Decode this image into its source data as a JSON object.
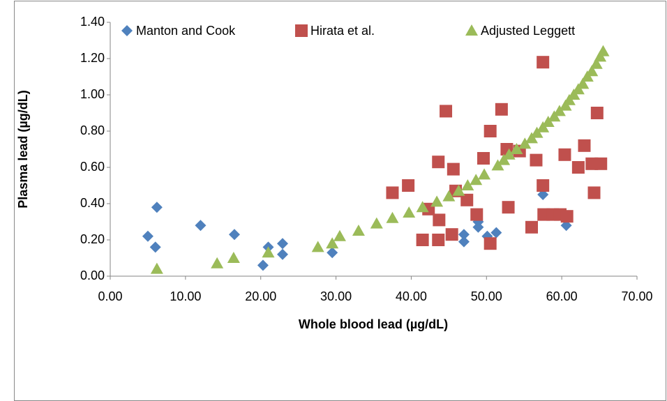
{
  "chart_data": {
    "type": "scatter",
    "xlabel": "Whole blood lead (µg/dL)",
    "ylabel": "Plasma lead (µg/dL)",
    "xlim": [
      0,
      70
    ],
    "ylim": [
      0,
      1.4
    ],
    "xticks": [
      {
        "value": 0,
        "label": "0.00"
      },
      {
        "value": 10,
        "label": "10.00"
      },
      {
        "value": 20,
        "label": "20.00"
      },
      {
        "value": 30,
        "label": "30.00"
      },
      {
        "value": 40,
        "label": "40.00"
      },
      {
        "value": 50,
        "label": "50.00"
      },
      {
        "value": 60,
        "label": "60.00"
      },
      {
        "value": 70,
        "label": "70.00"
      }
    ],
    "yticks": [
      {
        "value": 0,
        "label": "0.00"
      },
      {
        "value": 0.2,
        "label": "0.20"
      },
      {
        "value": 0.4,
        "label": "0.40"
      },
      {
        "value": 0.6,
        "label": "0.60"
      },
      {
        "value": 0.8,
        "label": "0.80"
      },
      {
        "value": 1.0,
        "label": "1.00"
      },
      {
        "value": 1.2,
        "label": "1.20"
      },
      {
        "value": 1.4,
        "label": "1.40"
      }
    ],
    "grid": false,
    "series": [
      {
        "name": "Manton and Cook",
        "color": "#4f81bd",
        "marker": "diamond",
        "x": [
          5.0,
          6.2,
          6.0,
          12.0,
          16.5,
          20.3,
          21.0,
          22.9,
          22.9,
          29.5,
          47.0,
          47.0,
          48.9,
          48.9,
          50.1,
          51.3,
          57.5,
          60.6
        ],
        "values": [
          0.22,
          0.38,
          0.16,
          0.28,
          0.23,
          0.06,
          0.16,
          0.18,
          0.12,
          0.13,
          0.23,
          0.19,
          0.3,
          0.27,
          0.22,
          0.24,
          0.45,
          0.28
        ]
      },
      {
        "name": "Hirata et al.",
        "color": "#c0504d",
        "marker": "square",
        "x": [
          41.5,
          37.5,
          39.6,
          42.3,
          43.6,
          43.6,
          43.7,
          44.6,
          45.4,
          45.6,
          45.9,
          47.4,
          48.7,
          49.6,
          50.5,
          50.5,
          52.0,
          52.7,
          52.9,
          54.4,
          56.0,
          56.6,
          57.5,
          57.5,
          57.6,
          58.8,
          59.8,
          60.7,
          60.4,
          62.2,
          63.0,
          64.0,
          64.3,
          64.7,
          65.2
        ],
        "values": [
          0.2,
          0.46,
          0.5,
          0.37,
          0.63,
          0.2,
          0.31,
          0.91,
          0.23,
          0.59,
          0.47,
          0.42,
          0.34,
          0.65,
          0.8,
          0.18,
          0.92,
          0.7,
          0.38,
          0.69,
          0.27,
          0.64,
          1.18,
          0.5,
          0.34,
          0.34,
          0.34,
          0.33,
          0.67,
          0.6,
          0.72,
          0.62,
          0.46,
          0.9,
          0.62
        ]
      },
      {
        "name": "Adjusted Leggett",
        "color": "#9bbb59",
        "marker": "triangle",
        "x": [
          6.2,
          14.2,
          16.4,
          21.0,
          27.6,
          29.5,
          30.5,
          33.0,
          35.4,
          37.5,
          39.7,
          41.5,
          43.4,
          45.0,
          46.3,
          47.5,
          48.6,
          49.7,
          51.5,
          52.3,
          53.0,
          54.0,
          55.1,
          56.0,
          56.7,
          57.5,
          58.2,
          59.0,
          59.7,
          60.5,
          61.0,
          61.6,
          62.2,
          62.8,
          63.4,
          64.0,
          64.6,
          65.1,
          65.5
        ],
        "values": [
          0.04,
          0.07,
          0.1,
          0.13,
          0.16,
          0.18,
          0.22,
          0.25,
          0.29,
          0.32,
          0.35,
          0.38,
          0.41,
          0.44,
          0.47,
          0.5,
          0.53,
          0.56,
          0.61,
          0.64,
          0.67,
          0.7,
          0.73,
          0.76,
          0.79,
          0.82,
          0.85,
          0.88,
          0.91,
          0.94,
          0.97,
          1.0,
          1.03,
          1.06,
          1.1,
          1.13,
          1.17,
          1.21,
          1.24
        ]
      }
    ]
  }
}
